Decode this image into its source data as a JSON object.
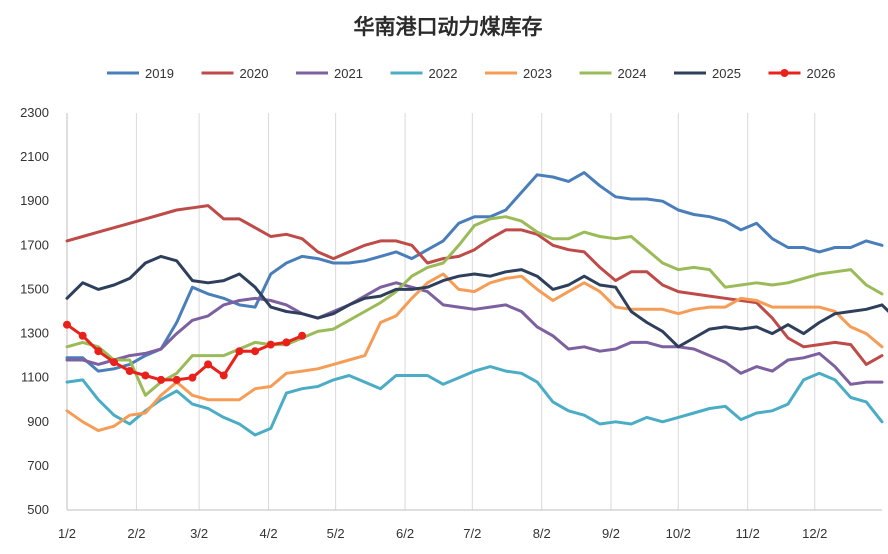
{
  "chart_data": {
    "type": "line",
    "title": "华南港口动力煤库存",
    "xlabel": "",
    "ylabel": "",
    "ylim": [
      500,
      2300
    ],
    "yticks": [
      500,
      700,
      900,
      1100,
      1300,
      1500,
      1700,
      1900,
      2100,
      2300
    ],
    "xlim": [
      0,
      52
    ],
    "xticks": [
      {
        "label": "1/2",
        "x": 0
      },
      {
        "label": "2/2",
        "x": 4.43
      },
      {
        "label": "3/2",
        "x": 8.43
      },
      {
        "label": "4/2",
        "x": 12.86
      },
      {
        "label": "5/2",
        "x": 17.14
      },
      {
        "label": "6/2",
        "x": 21.57
      },
      {
        "label": "7/2",
        "x": 25.86
      },
      {
        "label": "8/2",
        "x": 30.29
      },
      {
        "label": "9/2",
        "x": 34.71
      },
      {
        "label": "10/2",
        "x": 39.0
      },
      {
        "label": "11/2",
        "x": 43.43
      },
      {
        "label": "12/2",
        "x": 47.71
      }
    ],
    "grid": "vertical",
    "legend_position": "top",
    "series": [
      {
        "name": "2019",
        "color": "#4a7ebb",
        "values": [
          1190,
          1190,
          1130,
          1140,
          1160,
          1200,
          1230,
          1350,
          1510,
          1480,
          1460,
          1430,
          1420,
          1570,
          1620,
          1650,
          1640,
          1620,
          1620,
          1630,
          1650,
          1670,
          1640,
          1680,
          1720,
          1800,
          1830,
          1830,
          1860,
          1940,
          2020,
          2010,
          1990,
          2030,
          1970,
          1920,
          1910,
          1910,
          1900,
          1860,
          1840,
          1830,
          1810,
          1770,
          1800,
          1730,
          1690,
          1690,
          1670,
          1690,
          1690,
          1720,
          1700
        ]
      },
      {
        "name": "2020",
        "color": "#be4b48",
        "values": [
          1720,
          1740,
          1760,
          1780,
          1800,
          1820,
          1840,
          1860,
          1870,
          1880,
          1820,
          1820,
          1780,
          1740,
          1750,
          1730,
          1670,
          1640,
          1670,
          1700,
          1720,
          1720,
          1700,
          1620,
          1640,
          1650,
          1680,
          1730,
          1770,
          1770,
          1750,
          1700,
          1680,
          1670,
          1600,
          1540,
          1580,
          1580,
          1520,
          1490,
          1480,
          1470,
          1460,
          1450,
          1440,
          1370,
          1280,
          1240,
          1250,
          1260,
          1250,
          1160,
          1200
        ]
      },
      {
        "name": "2021",
        "color": "#7d60a0",
        "values": [
          1180,
          1180,
          1160,
          1180,
          1200,
          1210,
          1230,
          1300,
          1360,
          1380,
          1430,
          1450,
          1460,
          1450,
          1430,
          1390,
          1370,
          1400,
          1430,
          1470,
          1510,
          1530,
          1510,
          1490,
          1430,
          1420,
          1410,
          1420,
          1430,
          1400,
          1330,
          1290,
          1230,
          1240,
          1220,
          1230,
          1260,
          1260,
          1240,
          1240,
          1230,
          1200,
          1170,
          1120,
          1150,
          1130,
          1180,
          1190,
          1210,
          1150,
          1070,
          1080,
          1080
        ]
      },
      {
        "name": "2022",
        "color": "#4bacc6",
        "values": [
          1080,
          1090,
          1000,
          930,
          890,
          950,
          1000,
          1040,
          980,
          960,
          920,
          890,
          840,
          870,
          1030,
          1050,
          1060,
          1090,
          1110,
          1080,
          1050,
          1110,
          1110,
          1110,
          1070,
          1100,
          1130,
          1150,
          1130,
          1120,
          1080,
          990,
          950,
          930,
          890,
          900,
          890,
          920,
          900,
          920,
          940,
          960,
          970,
          910,
          940,
          950,
          980,
          1090,
          1120,
          1090,
          1010,
          990,
          900
        ]
      },
      {
        "name": "2023",
        "color": "#f59d56",
        "values": [
          950,
          900,
          860,
          880,
          930,
          940,
          1020,
          1080,
          1020,
          1000,
          1000,
          1000,
          1050,
          1060,
          1120,
          1130,
          1140,
          1160,
          1180,
          1200,
          1350,
          1380,
          1460,
          1530,
          1570,
          1500,
          1490,
          1530,
          1550,
          1560,
          1500,
          1450,
          1490,
          1530,
          1490,
          1420,
          1410,
          1410,
          1410,
          1390,
          1410,
          1420,
          1420,
          1460,
          1450,
          1420,
          1420,
          1420,
          1420,
          1400,
          1330,
          1300,
          1240
        ]
      },
      {
        "name": "2024",
        "color": "#9bbb59",
        "values": [
          1240,
          1260,
          1240,
          1180,
          1180,
          1020,
          1080,
          1120,
          1200,
          1200,
          1200,
          1230,
          1260,
          1250,
          1250,
          1280,
          1310,
          1320,
          1360,
          1400,
          1440,
          1490,
          1560,
          1600,
          1620,
          1700,
          1790,
          1820,
          1830,
          1810,
          1760,
          1730,
          1730,
          1760,
          1740,
          1730,
          1740,
          1680,
          1620,
          1590,
          1600,
          1590,
          1510,
          1520,
          1530,
          1520,
          1530,
          1550,
          1570,
          1580,
          1590,
          1520,
          1480
        ]
      },
      {
        "name": "2025",
        "color": "#2e3f5c",
        "values": [
          1460,
          1530,
          1500,
          1520,
          1550,
          1620,
          1650,
          1630,
          1540,
          1530,
          1540,
          1570,
          1510,
          1420,
          1400,
          1390,
          1370,
          1390,
          1430,
          1460,
          1470,
          1500,
          1500,
          1510,
          1540,
          1560,
          1570,
          1560,
          1580,
          1590,
          1560,
          1500,
          1520,
          1560,
          1520,
          1510,
          1400,
          1350,
          1310,
          1240,
          1280,
          1320,
          1330,
          1320,
          1330,
          1300,
          1340,
          1300,
          1350,
          1390,
          1400,
          1410,
          1430,
          1360
        ]
      },
      {
        "name": "2026",
        "color": "#e8211b",
        "marker": "circle",
        "values": [
          1340,
          1290,
          1220,
          1170,
          1130,
          1110,
          1090,
          1090,
          1100,
          1160,
          1110,
          1220,
          1220,
          1250,
          1260,
          1290
        ]
      }
    ]
  }
}
